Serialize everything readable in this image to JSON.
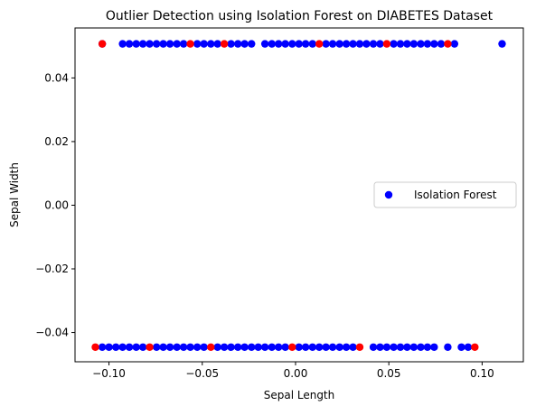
{
  "chart_data": {
    "type": "scatter",
    "title": "Outlier Detection using Isolation Forest on DIABETES Dataset",
    "xlabel": "Sepal Length",
    "ylabel": "Sepal Width",
    "xlim": [
      -0.1182,
      0.1221
    ],
    "ylim": [
      -0.0492,
      0.0557
    ],
    "x_ticks": [
      -0.1,
      -0.05,
      0.0,
      0.05,
      0.1
    ],
    "x_tick_labels": [
      "−0.10",
      "−0.05",
      "0.00",
      "0.05",
      "0.10"
    ],
    "y_ticks": [
      -0.04,
      -0.02,
      0.0,
      0.02,
      0.04
    ],
    "y_tick_labels": [
      "−0.04",
      "−0.02",
      "0.00",
      "0.02",
      "0.04"
    ],
    "grid": false,
    "legend": {
      "entries": [
        "Isolation Forest"
      ],
      "placement": "center-right"
    },
    "colors": {
      "inlier": "#0000ff",
      "outlier": "#ff0000"
    },
    "series": [
      {
        "name": "Isolation Forest",
        "y_levels": [
          0.0507,
          -0.0446
        ],
        "inliers": [
          [
            -0.1036,
            0.0507
          ],
          [
            -0.0927,
            0.0507
          ],
          [
            -0.0891,
            0.0507
          ],
          [
            -0.0854,
            0.0507
          ],
          [
            -0.0818,
            0.0507
          ],
          [
            -0.0782,
            0.0507
          ],
          [
            -0.0745,
            0.0507
          ],
          [
            -0.0709,
            0.0507
          ],
          [
            -0.0673,
            0.0507
          ],
          [
            -0.0636,
            0.0507
          ],
          [
            -0.06,
            0.0507
          ],
          [
            -0.0527,
            0.0507
          ],
          [
            -0.0491,
            0.0507
          ],
          [
            -0.0454,
            0.0507
          ],
          [
            -0.0418,
            0.0507
          ],
          [
            -0.0346,
            0.0507
          ],
          [
            -0.0309,
            0.0507
          ],
          [
            -0.0273,
            0.0507
          ],
          [
            -0.0236,
            0.0507
          ],
          [
            -0.0164,
            0.0507
          ],
          [
            -0.0127,
            0.0507
          ],
          [
            -0.0091,
            0.0507
          ],
          [
            -0.0055,
            0.0507
          ],
          [
            -0.0018,
            0.0507
          ],
          [
            0.0018,
            0.0507
          ],
          [
            0.0054,
            0.0507
          ],
          [
            0.0091,
            0.0507
          ],
          [
            0.0163,
            0.0507
          ],
          [
            0.0199,
            0.0507
          ],
          [
            0.0236,
            0.0507
          ],
          [
            0.0272,
            0.0507
          ],
          [
            0.0308,
            0.0507
          ],
          [
            0.0344,
            0.0507
          ],
          [
            0.038,
            0.0507
          ],
          [
            0.0417,
            0.0507
          ],
          [
            0.0453,
            0.0507
          ],
          [
            0.0526,
            0.0507
          ],
          [
            0.0562,
            0.0507
          ],
          [
            0.0598,
            0.0507
          ],
          [
            0.0634,
            0.0507
          ],
          [
            0.0671,
            0.0507
          ],
          [
            0.0707,
            0.0507
          ],
          [
            0.0743,
            0.0507
          ],
          [
            0.078,
            0.0507
          ],
          [
            0.0852,
            0.0507
          ],
          [
            0.1107,
            0.0507
          ],
          [
            -0.1036,
            -0.0446
          ],
          [
            -0.1,
            -0.0446
          ],
          [
            -0.0963,
            -0.0446
          ],
          [
            -0.0927,
            -0.0446
          ],
          [
            -0.0891,
            -0.0446
          ],
          [
            -0.0854,
            -0.0446
          ],
          [
            -0.0818,
            -0.0446
          ],
          [
            -0.0745,
            -0.0446
          ],
          [
            -0.0709,
            -0.0446
          ],
          [
            -0.0673,
            -0.0446
          ],
          [
            -0.0636,
            -0.0446
          ],
          [
            -0.06,
            -0.0446
          ],
          [
            -0.0564,
            -0.0446
          ],
          [
            -0.0527,
            -0.0446
          ],
          [
            -0.0491,
            -0.0446
          ],
          [
            -0.0418,
            -0.0446
          ],
          [
            -0.0382,
            -0.0446
          ],
          [
            -0.0346,
            -0.0446
          ],
          [
            -0.0309,
            -0.0446
          ],
          [
            -0.0273,
            -0.0446
          ],
          [
            -0.0236,
            -0.0446
          ],
          [
            -0.02,
            -0.0446
          ],
          [
            -0.0164,
            -0.0446
          ],
          [
            -0.0127,
            -0.0446
          ],
          [
            -0.0091,
            -0.0446
          ],
          [
            -0.0055,
            -0.0446
          ],
          [
            0.0018,
            -0.0446
          ],
          [
            0.0054,
            -0.0446
          ],
          [
            0.0091,
            -0.0446
          ],
          [
            0.0127,
            -0.0446
          ],
          [
            0.0163,
            -0.0446
          ],
          [
            0.0199,
            -0.0446
          ],
          [
            0.0236,
            -0.0446
          ],
          [
            0.0272,
            -0.0446
          ],
          [
            0.0308,
            -0.0446
          ],
          [
            0.0417,
            -0.0446
          ],
          [
            0.0453,
            -0.0446
          ],
          [
            0.0489,
            -0.0446
          ],
          [
            0.0526,
            -0.0446
          ],
          [
            0.0562,
            -0.0446
          ],
          [
            0.0598,
            -0.0446
          ],
          [
            0.0634,
            -0.0446
          ],
          [
            0.0671,
            -0.0446
          ],
          [
            0.0707,
            -0.0446
          ],
          [
            0.0743,
            -0.0446
          ],
          [
            0.0816,
            -0.0446
          ],
          [
            0.0889,
            -0.0446
          ],
          [
            0.0925,
            -0.0446
          ]
        ],
        "outliers": [
          [
            -0.1036,
            0.0507
          ],
          [
            -0.0564,
            0.0507
          ],
          [
            -0.0382,
            0.0507
          ],
          [
            0.0127,
            0.0507
          ],
          [
            0.0489,
            0.0507
          ],
          [
            0.0816,
            0.0507
          ],
          [
            -0.1073,
            -0.0446
          ],
          [
            -0.0782,
            -0.0446
          ],
          [
            -0.0454,
            -0.0446
          ],
          [
            -0.0018,
            -0.0446
          ],
          [
            0.0344,
            -0.0446
          ],
          [
            0.0961,
            -0.0446
          ]
        ]
      }
    ]
  }
}
